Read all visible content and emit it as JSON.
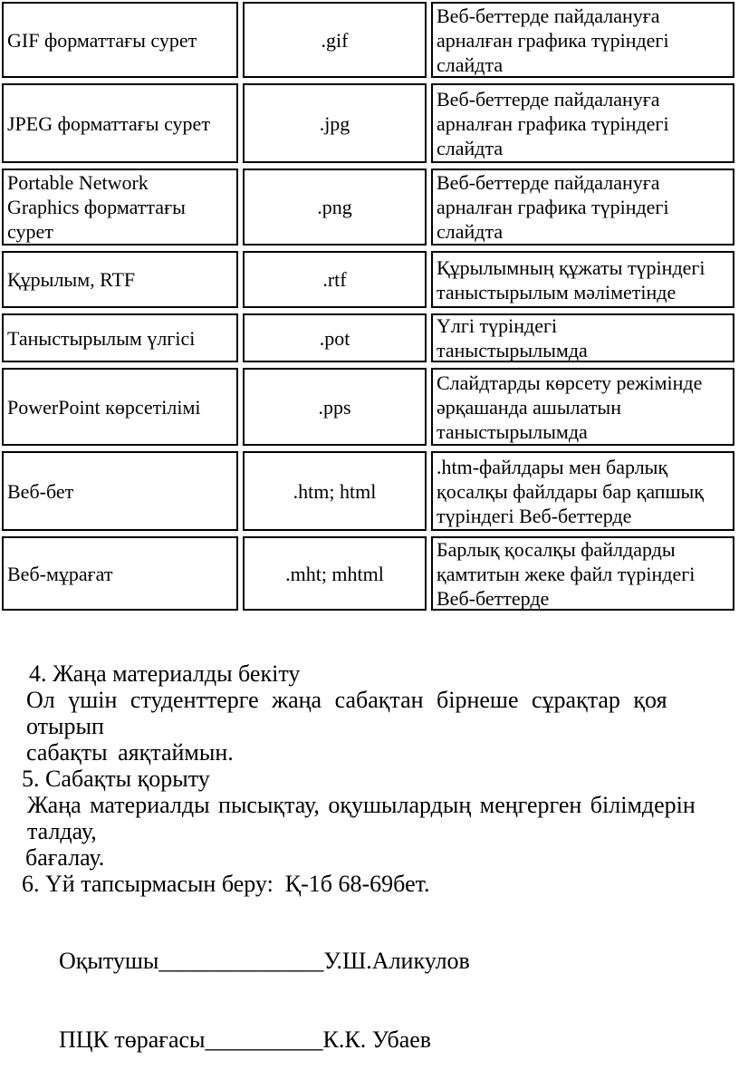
{
  "table": {
    "rows": [
      {
        "format": "GIF форматтағы сурет",
        "extension": ".gif",
        "description": "Веб-беттерде пайдалануға\nарналған графика түріндегі\nслайдта"
      },
      {
        "format": "JPEG форматтағы сурет",
        "extension": ".jpg",
        "description": "Веб-беттерде пайдалануға\nарналған графика түріндегі\nслайдта"
      },
      {
        "format": "Portable Network\nGraphics форматтағы\nсурет",
        "extension": ".png",
        "description": "Веб-беттерде пайдалануға\nарналған графика түріндегі\nслайдта"
      },
      {
        "format": "Құрылым, RTF",
        "extension": ".rtf",
        "description": "Құрылымның құжаты түріндегі\nтаныстырылым мәліметінде"
      },
      {
        "format": "Таныстырылым үлгісі",
        "extension": ".pot",
        "description": "Үлгі түріндегі\nтаныстырылымда"
      },
      {
        "format": "PowerPoint көрсетілімі",
        "extension": ".pps",
        "description": "Слайдтарды көрсету режімінде\nәрқашанда ашылатын\nтаныстырылымда"
      },
      {
        "format": "Веб-бет",
        "extension": ".htm; html",
        "description": ".htm-файлдары мен барлық\nқосалқы файлдары бар қапшық\nтүріндегі Веб-беттерде"
      },
      {
        "format": "Веб-мұрағат",
        "extension": ".mht; mhtml",
        "description": "Барлық қосалқы файлдарды\nқамтитын жеке файл түріндегі\nВеб-беттерде"
      }
    ]
  },
  "body": {
    "item4_title": "4. Жаңа материалды бекіту",
    "item4_line1": "Ол үшін студенттерге жаңа сабақтан бірнеше сұрақтар қоя отырып",
    "item4_line2": "сабақты аяқтаймын.",
    "item5_title": "5. Сабақты қорыту",
    "item5_line1": "Жаңа материалды пысықтау, оқушылардың меңгерген білімдерін талдау,",
    "item5_line2": "бағалау.",
    "item6_title": "6. Үй тапсырмасын беру:  Қ-1б 68-69бет."
  },
  "signatures": [
    {
      "label": "Оқытушы",
      "line": "______________",
      "name": "У.Ш.Аликулов"
    },
    {
      "label": "ПЦК төрағасы",
      "line": "__________",
      "name": "К.К. Убаев"
    }
  ]
}
